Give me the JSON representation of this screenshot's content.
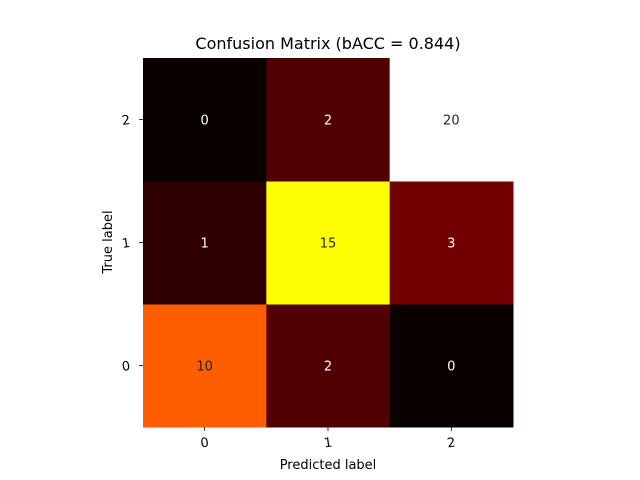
{
  "chart_data": {
    "type": "heatmap",
    "title": "Confusion Matrix (bACC = 0.844)",
    "xlabel": "Predicted label",
    "ylabel": "True label",
    "x_categories": [
      "0",
      "1",
      "2"
    ],
    "y_categories": [
      "0",
      "1",
      "2"
    ],
    "y_order": "bottom-to-top",
    "colormap": "hot",
    "vmin": 0,
    "vmax": 20,
    "colorbar": false,
    "grid": false,
    "matrix": [
      [
        10,
        2,
        0
      ],
      [
        1,
        15,
        3
      ],
      [
        0,
        2,
        20
      ]
    ]
  }
}
